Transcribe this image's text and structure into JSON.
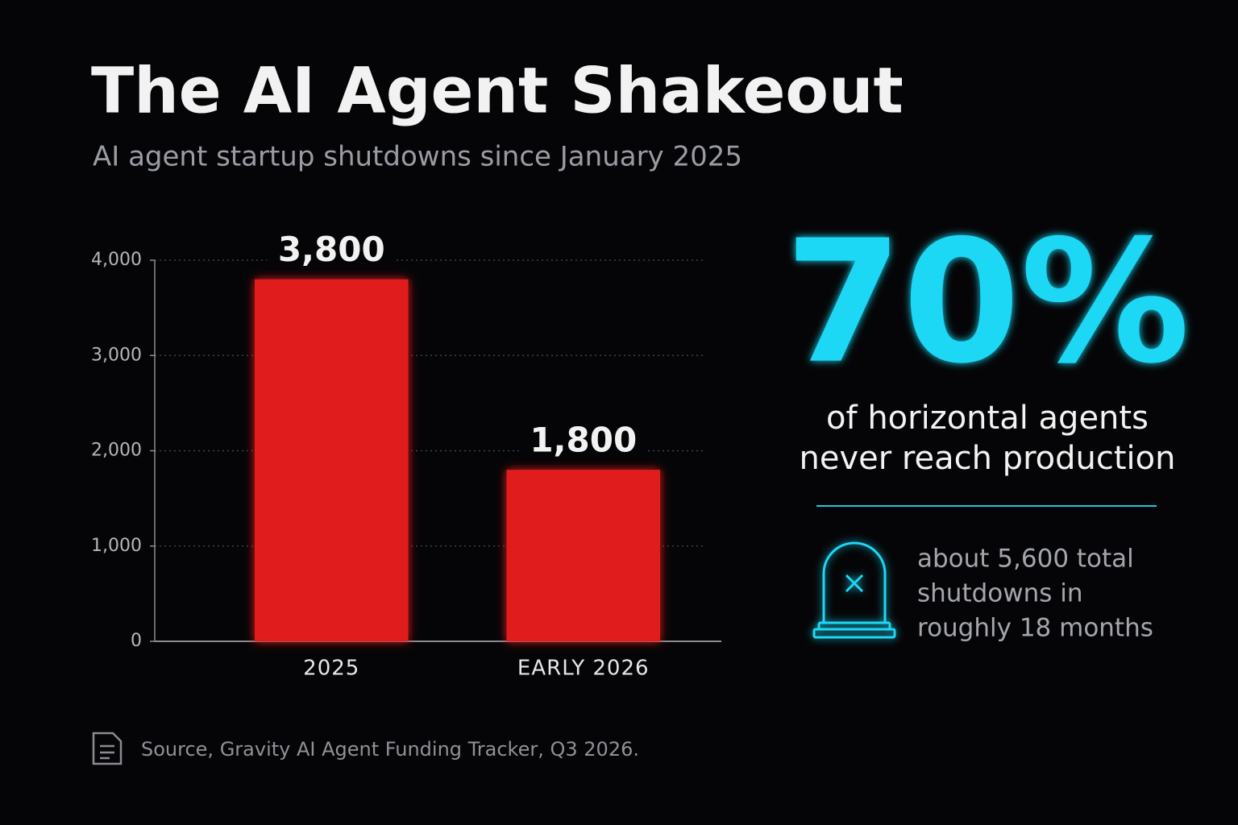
{
  "chart_data": {
    "type": "bar",
    "title": "The AI Agent Shakeout",
    "subtitle": "AI agent startup shutdowns since January 2025",
    "categories": [
      "2025",
      "EARLY 2026"
    ],
    "values": [
      3800,
      1800
    ],
    "value_labels": [
      "3,800",
      "1,800"
    ],
    "color": "#e01e1e",
    "ylim": [
      0,
      4000
    ],
    "yticks": [
      0,
      {
        "value": 1000,
        "label": "1,000"
      },
      {
        "value": 2000,
        "label": "2,000"
      },
      {
        "value": 3000,
        "label": "3,000"
      },
      {
        "value": 4000,
        "label": "4,000"
      }
    ],
    "grid": true
  },
  "callout": {
    "stat": "70%",
    "text": [
      "of horizontal agents",
      "never reach production"
    ]
  },
  "note": [
    "about 5,600 total",
    "shutdowns in",
    "roughly 18 months"
  ],
  "source": "Source, Gravity AI Agent Funding Tracker, Q3 2026."
}
